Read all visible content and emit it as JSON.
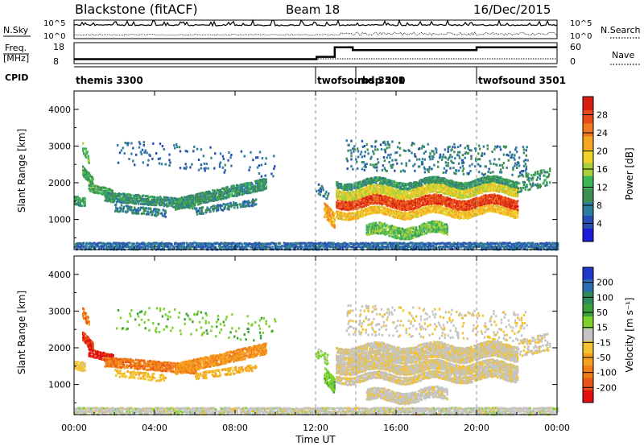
{
  "header": {
    "title": "Blackstone (fitACF)",
    "beam": "Beam 18",
    "date": "16/Dec/2015"
  },
  "chart_data": {
    "type": "heatmap",
    "time_axis": {
      "xlabel": "Time UT",
      "xlim_hours": [
        0,
        24
      ],
      "ticks": [
        {
          "h": 0,
          "label": "00:00"
        },
        {
          "h": 4,
          "label": "04:00"
        },
        {
          "h": 8,
          "label": "08:00"
        },
        {
          "h": 12,
          "label": "12:00"
        },
        {
          "h": 16,
          "label": "16:00"
        },
        {
          "h": 20,
          "label": "20:00"
        },
        {
          "h": 24,
          "label": "00:00"
        }
      ]
    },
    "noise_panel": {
      "left_label": "N.Sky",
      "right_label": "N.Search",
      "left_ticks": [
        "10^5",
        "10^0"
      ],
      "right_ticks": [
        "10^5",
        "10^0"
      ]
    },
    "freq_panel": {
      "left_label_1": "Freq.",
      "left_label_2": "[MHz]",
      "right_label": "Nave",
      "left_ticks": [
        18,
        8
      ],
      "right_ticks": [
        60,
        0
      ],
      "freq_steps": [
        {
          "from": 0,
          "to": 12.05,
          "v": 10.5
        },
        {
          "from": 12.05,
          "to": 12.95,
          "v": 11.8
        },
        {
          "from": 12.95,
          "to": 13.85,
          "v": 17.2
        },
        {
          "from": 13.85,
          "to": 20.0,
          "v": 15.6
        },
        {
          "from": 20.0,
          "to": 24,
          "v": 17.2
        }
      ]
    },
    "cpid_panel": {
      "label": "CPID",
      "modes": [
        {
          "start": 0,
          "name": "themis 3300"
        },
        {
          "start": 12.0,
          "name": "twofsound 3501"
        },
        {
          "start": 14.0,
          "name": "rbsp 200"
        },
        {
          "start": 20.0,
          "name": "twofsound 3501"
        }
      ]
    },
    "panels": [
      {
        "ylabel": "Slant Range [km]",
        "ylim": [
          180,
          4500
        ],
        "yticks": [
          1000,
          2000,
          3000,
          4000
        ],
        "colorbar": {
          "label": "Power [dB]",
          "range": [
            0,
            32
          ],
          "ticks": [
            4,
            8,
            12,
            16,
            20,
            24,
            28
          ],
          "colors": [
            "#1c1cd8",
            "#2850b4",
            "#2e7d9c",
            "#3e8e54",
            "#3fb55a",
            "#a9cf3a",
            "#f0d22a",
            "#f5a623",
            "#f07a1f",
            "#e84a1a",
            "#d81e12"
          ]
        }
      },
      {
        "ylabel": "Slant Range [km]",
        "ylim": [
          180,
          4500
        ],
        "yticks": [
          1000,
          2000,
          3000,
          4000
        ],
        "colorbar": {
          "label": "Velocity [m s⁻¹]",
          "range": [
            -250,
            250
          ],
          "ticks": [
            {
              "v": 200,
              "label": "200"
            },
            {
              "v": 100,
              "label": "100"
            },
            {
              "v": 50,
              "label": "50"
            },
            {
              "v": 15,
              "label": "15"
            },
            {
              "v": -15,
              "label": "-15"
            },
            {
              "v": -50,
              "label": "-50"
            },
            {
              "v": -100,
              "label": "-100"
            },
            {
              "v": -200,
              "label": "-200"
            }
          ],
          "bands": [
            {
              "from": 150,
              "to": 250,
              "color": "#2138c8"
            },
            {
              "from": 100,
              "to": 150,
              "color": "#2c6fb0"
            },
            {
              "from": 75,
              "to": 100,
              "color": "#2e8a5a"
            },
            {
              "from": 50,
              "to": 75,
              "color": "#3ca03c"
            },
            {
              "from": 15,
              "to": 50,
              "color": "#7fd12f"
            },
            {
              "from": -15,
              "to": 15,
              "color": "#c4c4c4"
            },
            {
              "from": -50,
              "to": -15,
              "color": "#f2c230"
            },
            {
              "from": -75,
              "to": -50,
              "color": "#f5a020"
            },
            {
              "from": -100,
              "to": -75,
              "color": "#f07d18"
            },
            {
              "from": -150,
              "to": -100,
              "color": "#e85514"
            },
            {
              "from": -250,
              "to": -150,
              "color": "#e01010"
            }
          ]
        }
      }
    ],
    "scatter_features": [
      {
        "t0": 0.0,
        "t1": 0.5,
        "r0": 1550,
        "r1": 1500,
        "w": 130,
        "p": 10,
        "v": -30,
        "d": 0.7
      },
      {
        "t0": 0.4,
        "t1": 0.9,
        "r0": 2350,
        "r1": 2050,
        "w": 140,
        "p": 12,
        "v": -150,
        "d": 0.9
      },
      {
        "t0": 0.7,
        "t1": 1.9,
        "r0": 1900,
        "r1": 1750,
        "w": 120,
        "p": 12,
        "v": -160,
        "d": 0.9
      },
      {
        "t0": 0.4,
        "t1": 0.7,
        "r0": 3000,
        "r1": 2700,
        "w": 150,
        "p": 14,
        "v": -90,
        "d": 0.6
      },
      {
        "t0": 1.5,
        "t1": 6.0,
        "r0": 1650,
        "r1": 1450,
        "w": 140,
        "p": 10,
        "v": -90,
        "d": 0.75
      },
      {
        "t0": 2.0,
        "t1": 4.5,
        "r0": 1350,
        "r1": 1200,
        "w": 110,
        "p": 8,
        "v": -40,
        "d": 0.5
      },
      {
        "t0": 5.0,
        "t1": 9.5,
        "r0": 1450,
        "r1": 2000,
        "w": 160,
        "p": 10,
        "v": -70,
        "d": 0.75
      },
      {
        "t0": 6.0,
        "t1": 9.0,
        "r0": 1250,
        "r1": 1500,
        "w": 100,
        "p": 8,
        "v": -50,
        "d": 0.45
      },
      {
        "t0": 2.0,
        "t1": 10.0,
        "r0": 2900,
        "r1": 2500,
        "w": 350,
        "p": 6,
        "v": 40,
        "d": 0.06
      },
      {
        "t0": 0.0,
        "t1": 24.0,
        "r0": 300,
        "r1": 300,
        "w": 120,
        "p": 6,
        "v": 0,
        "d": 0.85
      },
      {
        "t0": 12.4,
        "t1": 12.9,
        "r0": 1300,
        "r1": 1000,
        "w": 220,
        "p": 22,
        "v": 40,
        "d": 0.8
      },
      {
        "t0": 12.0,
        "t1": 12.6,
        "r0": 1900,
        "r1": 1700,
        "w": 150,
        "p": 8,
        "v": 30,
        "d": 0.3
      },
      {
        "t0": 13.0,
        "t1": 22.0,
        "r0": 1500,
        "r1": 1500,
        "w": 140,
        "p": 28,
        "v": -10,
        "d": 0.95
      },
      {
        "t0": 13.0,
        "t1": 22.0,
        "r0": 1750,
        "r1": 1850,
        "w": 130,
        "p": 18,
        "v": -10,
        "d": 0.9
      },
      {
        "t0": 13.0,
        "t1": 22.0,
        "r0": 2000,
        "r1": 2050,
        "w": 90,
        "p": 10,
        "v": -10,
        "d": 0.8
      },
      {
        "t0": 13.0,
        "t1": 22.0,
        "r0": 1200,
        "r1": 1250,
        "w": 110,
        "p": 20,
        "v": -10,
        "d": 0.85
      },
      {
        "t0": 14.5,
        "t1": 18.5,
        "r0": 700,
        "r1": 750,
        "w": 160,
        "p": 14,
        "v": -5,
        "d": 0.75
      },
      {
        "t0": 13.5,
        "t1": 22.5,
        "r0": 2800,
        "r1": 2600,
        "w": 420,
        "p": 8,
        "v": -10,
        "d": 0.12
      },
      {
        "t0": 22.0,
        "t1": 23.6,
        "r0": 2000,
        "r1": 2200,
        "w": 250,
        "p": 10,
        "v": -10,
        "d": 0.35
      }
    ]
  }
}
